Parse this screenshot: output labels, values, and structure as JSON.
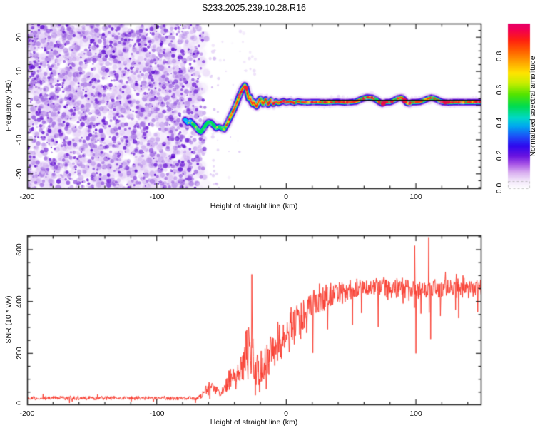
{
  "figure": {
    "title": "S233.2025.239.10.28.R16",
    "background": "#ffffff",
    "frame_color": "#222222"
  },
  "chart_data": [
    {
      "type": "heatmap",
      "panel": "spectrogram",
      "xlabel": "Height of straight line (km)",
      "ylabel": "Frequency (Hz)",
      "xlim": [
        -200,
        150.6
      ],
      "ylim": [
        -24.4,
        24
      ],
      "xticks": [
        -200,
        -100,
        0,
        100
      ],
      "xtick_minor_step": 20,
      "yticks": [
        20,
        10,
        0,
        -10,
        -20
      ],
      "ytick_minor_step": 2,
      "colorbar": {
        "label": "Normalized spectral amplitude",
        "ticks": [
          "0.0",
          "0.2",
          "0.4",
          "0.6",
          "0.8"
        ],
        "range": [
          0,
          1
        ],
        "gradient": [
          [
            0.0,
            "#ffffff"
          ],
          [
            0.05,
            "#f2e6fa"
          ],
          [
            0.1,
            "#d9aef0"
          ],
          [
            0.15,
            "#a855e6"
          ],
          [
            0.2,
            "#6a14e0"
          ],
          [
            0.26,
            "#2f08ee"
          ],
          [
            0.32,
            "#1b52f8"
          ],
          [
            0.38,
            "#00a8f0"
          ],
          [
            0.43,
            "#00d8c8"
          ],
          [
            0.5,
            "#00dc50"
          ],
          [
            0.57,
            "#52e400"
          ],
          [
            0.64,
            "#c8ee00"
          ],
          [
            0.7,
            "#ffe400"
          ],
          [
            0.77,
            "#ffa000"
          ],
          [
            0.84,
            "#ff5a00"
          ],
          [
            0.9,
            "#ff2010"
          ],
          [
            0.96,
            "#f30050"
          ],
          [
            1.0,
            "#e6006a"
          ]
        ]
      },
      "noise_region": {
        "x_min": -200,
        "x_max": -62,
        "description": "dense purple speckle noise, no signal"
      },
      "sparse_blob_column_x": -56,
      "noise_palette": [
        "#efe3fa",
        "#dcc2f4",
        "#c09aec",
        "#9c64e0",
        "#7a2ed8",
        "#5f0ed0"
      ],
      "trace_colors": {
        "halo": "#e2ccf6",
        "lavender": "#b57ae6",
        "violet": "#6a10d8",
        "blue": "#2808f0",
        "cyan": "#00b8f0",
        "green": "#00e058",
        "yellowgreen": "#aae000",
        "yellow": "#ffd800",
        "orange": "#ff8000",
        "red": "#ff2818",
        "crimson": "#e8084c"
      },
      "trace_points": [
        [
          -78,
          -4.2
        ],
        [
          -76,
          -5.0
        ],
        [
          -74,
          -4.6
        ],
        [
          -72,
          -5.4
        ],
        [
          -70,
          -6.2
        ],
        [
          -68,
          -7.2
        ],
        [
          -66,
          -7.8
        ],
        [
          -64,
          -6.8
        ],
        [
          -62,
          -5.6
        ],
        [
          -60,
          -4.8
        ],
        [
          -58,
          -5.0
        ],
        [
          -56,
          -5.8
        ],
        [
          -54,
          -6.6
        ],
        [
          -52,
          -6.2
        ],
        [
          -50,
          -6.6
        ],
        [
          -48,
          -6.9
        ],
        [
          -46,
          -5.6
        ],
        [
          -44,
          -4.0
        ],
        [
          -42,
          -2.4
        ],
        [
          -40,
          -0.8
        ],
        [
          -38,
          1.0
        ],
        [
          -36,
          3.0
        ],
        [
          -34,
          4.8
        ],
        [
          -32,
          5.9
        ],
        [
          -31,
          5.2
        ],
        [
          -30,
          3.6
        ],
        [
          -29,
          2.0
        ],
        [
          -28,
          2.6
        ],
        [
          -27,
          1.2
        ],
        [
          -26,
          0.4
        ],
        [
          -25,
          1.2
        ],
        [
          -24,
          0.2
        ],
        [
          -23,
          -0.3
        ],
        [
          -22,
          0.6
        ],
        [
          -21,
          1.6
        ],
        [
          -20,
          2.0
        ],
        [
          -19,
          1.2
        ],
        [
          -18,
          0.4
        ],
        [
          -17,
          1.0
        ],
        [
          -16,
          1.8
        ],
        [
          -15,
          1.2
        ],
        [
          -14,
          0.3
        ],
        [
          -13,
          0.9
        ],
        [
          -12,
          1.6
        ],
        [
          -11,
          1.1
        ],
        [
          -10,
          0.5
        ],
        [
          -8,
          1.2
        ],
        [
          -6,
          0.7
        ],
        [
          -4,
          1.1
        ],
        [
          -2,
          1.3
        ],
        [
          0,
          0.9
        ],
        [
          3,
          1.2
        ],
        [
          6,
          0.8
        ],
        [
          9,
          1.2
        ],
        [
          12,
          1.0
        ],
        [
          16,
          0.9
        ],
        [
          20,
          1.0
        ],
        [
          25,
          1.0
        ],
        [
          30,
          0.9
        ],
        [
          35,
          1.0
        ],
        [
          40,
          1.1
        ],
        [
          45,
          0.9
        ],
        [
          50,
          1.0
        ],
        [
          54,
          1.2
        ],
        [
          58,
          1.9
        ],
        [
          62,
          2.4
        ],
        [
          66,
          2.3
        ],
        [
          69,
          1.8
        ],
        [
          72,
          1.0
        ],
        [
          74,
          0.6
        ],
        [
          77,
          1.0
        ],
        [
          80,
          1.0
        ],
        [
          83,
          1.5
        ],
        [
          86,
          2.1
        ],
        [
          89,
          2.3
        ],
        [
          91,
          1.7
        ],
        [
          93,
          0.8
        ],
        [
          95,
          0.6
        ],
        [
          97,
          1.0
        ],
        [
          100,
          1.0
        ],
        [
          103,
          1.1
        ],
        [
          106,
          1.5
        ],
        [
          109,
          2.0
        ],
        [
          112,
          2.3
        ],
        [
          115,
          2.0
        ],
        [
          118,
          1.4
        ],
        [
          121,
          1.0
        ],
        [
          125,
          0.9
        ],
        [
          130,
          1.0
        ],
        [
          135,
          1.0
        ],
        [
          140,
          1.0
        ],
        [
          145,
          1.0
        ],
        [
          150.6,
          1.0
        ]
      ],
      "trace_weak_until_x": -50,
      "trace_strong_from_x": -38,
      "width_boost_regions": [
        [
          55,
          75
        ],
        [
          82,
          96
        ],
        [
          103,
          125
        ],
        [
          -36,
          -28
        ]
      ],
      "model_line": {
        "freq": 1.55,
        "x_start": 26,
        "x_end": 150.6,
        "color": "#0a0a0a"
      }
    },
    {
      "type": "line",
      "panel": "snr",
      "xlabel": "Height of straight line (km)",
      "ylabel": "SNR (10 * v/v)",
      "xlim": [
        -200,
        150.6
      ],
      "ylim": [
        0,
        655
      ],
      "xticks": [
        -200,
        -100,
        0,
        100
      ],
      "xtick_minor_step": 20,
      "yticks": [
        600,
        400,
        200,
        0
      ],
      "ytick_minor_step": 50,
      "color": "#f93a2d",
      "envelope_points_x_mean_amp": [
        [
          -200,
          27,
          9
        ],
        [
          -70,
          27,
          9
        ],
        [
          -66,
          32,
          12
        ],
        [
          -62,
          60,
          22
        ],
        [
          -58,
          80,
          24
        ],
        [
          -54,
          60,
          20
        ],
        [
          -51,
          45,
          14
        ],
        [
          -48,
          62,
          26
        ],
        [
          -45,
          95,
          45
        ],
        [
          -42,
          115,
          55
        ],
        [
          -39,
          100,
          55
        ],
        [
          -36,
          140,
          75
        ],
        [
          -33,
          170,
          95
        ],
        [
          -30,
          200,
          130
        ],
        [
          -27,
          240,
          170
        ],
        [
          -25,
          130,
          75
        ],
        [
          -22,
          150,
          95
        ],
        [
          -19,
          165,
          95
        ],
        [
          -16,
          150,
          85
        ],
        [
          -13,
          185,
          95
        ],
        [
          -10,
          205,
          95
        ],
        [
          -6,
          230,
          100
        ],
        [
          -2,
          260,
          100
        ],
        [
          2,
          285,
          95
        ],
        [
          6,
          305,
          95
        ],
        [
          10,
          325,
          90
        ],
        [
          14,
          345,
          85
        ],
        [
          18,
          365,
          80
        ],
        [
          22,
          385,
          75
        ],
        [
          27,
          405,
          65
        ],
        [
          32,
          420,
          60
        ],
        [
          38,
          432,
          55
        ],
        [
          45,
          440,
          52
        ],
        [
          52,
          448,
          48
        ],
        [
          60,
          452,
          46
        ],
        [
          70,
          455,
          46
        ],
        [
          80,
          450,
          46
        ],
        [
          90,
          452,
          48
        ],
        [
          100,
          455,
          50
        ],
        [
          110,
          450,
          50
        ],
        [
          120,
          452,
          48
        ],
        [
          130,
          450,
          46
        ],
        [
          140,
          452,
          44
        ],
        [
          150.6,
          455,
          42
        ]
      ],
      "spikes": [
        [
          -26.5,
          505
        ],
        [
          99,
          615
        ],
        [
          110,
          648
        ]
      ],
      "dips": [
        [
          -24,
          38
        ],
        [
          -20.5,
          50
        ],
        [
          -15.5,
          62
        ],
        [
          51,
          310
        ],
        [
          71,
          302
        ],
        [
          100,
          200
        ],
        [
          111.5,
          255
        ]
      ]
    }
  ]
}
